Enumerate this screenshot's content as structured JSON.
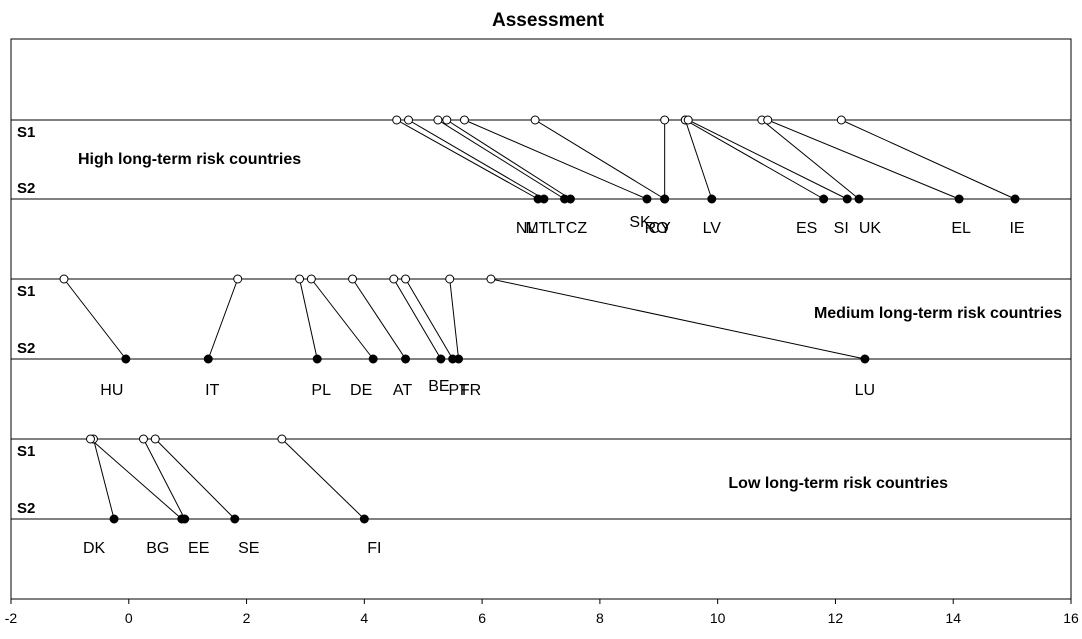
{
  "chart_data": {
    "type": "scatter",
    "title": "Assessment",
    "xlabel": "",
    "ylabel": "",
    "xlim": [
      -2,
      16
    ],
    "x_ticks": [
      "-2",
      "0",
      "2",
      "4",
      "6",
      "8",
      "10",
      "12",
      "14",
      "16"
    ],
    "grid": false,
    "legend": "none",
    "row_labels": {
      "s1": "S1",
      "s2": "S2"
    },
    "groups": [
      {
        "title": "High long-term risk countries",
        "countries": [
          {
            "code": "NL",
            "s1": 4.55,
            "s2": 6.95
          },
          {
            "code": "MT",
            "s1": 4.75,
            "s2": 7.05
          },
          {
            "code": "LT",
            "s1": 5.25,
            "s2": 7.4
          },
          {
            "code": "CZ",
            "s1": 5.4,
            "s2": 7.5
          },
          {
            "code": "SK",
            "s1": 5.7,
            "s2": 8.8
          },
          {
            "code": "CY",
            "s1": 6.9,
            "s2": 9.1
          },
          {
            "code": "RO",
            "s1": 9.1,
            "s2": 9.9
          },
          {
            "code": "LV",
            "s1": 9.45,
            "s2": 11.8
          },
          {
            "code": "ES",
            "s1": 9.5,
            "s2": 12.2
          },
          {
            "code": "SI",
            "s1": 10.75,
            "s2": 12.4
          },
          {
            "code": "UK",
            "s1": 10.85,
            "s2": 14.1
          },
          {
            "code": "EL",
            "s1": 12.1,
            "s2": 15.05
          },
          {
            "code": "IE",
            "s1": null,
            "s2": null
          }
        ]
      },
      {
        "title": "Medium long-term risk countries",
        "countries": [
          {
            "code": "HU",
            "s1": -1.1,
            "s2": -0.05
          },
          {
            "code": "IT",
            "s1": 1.85,
            "s2": 1.35
          },
          {
            "code": "PL",
            "s1": 2.9,
            "s2": 3.2
          },
          {
            "code": "DE",
            "s1": 3.1,
            "s2": 4.15
          },
          {
            "code": "AT",
            "s1": 3.8,
            "s2": 4.7
          },
          {
            "code": "BE",
            "s1": 4.5,
            "s2": 5.3
          },
          {
            "code": "PT",
            "s1": 4.7,
            "s2": 5.5
          },
          {
            "code": "FR",
            "s1": 5.45,
            "s2": 5.6
          },
          {
            "code": "LU",
            "s1": 6.15,
            "s2": 12.5
          }
        ]
      },
      {
        "title": "Low long-term risk countries",
        "countries": [
          {
            "code": "DK",
            "s1": -0.6,
            "s2": -0.25
          },
          {
            "code": "BG",
            "s1": -0.65,
            "s2": 0.9
          },
          {
            "code": "EE",
            "s1": 0.25,
            "s2": 0.95
          },
          {
            "code": "SE",
            "s1": 0.45,
            "s2": 1.8
          },
          {
            "code": "FI",
            "s1": 2.6,
            "s2": 4.0
          }
        ]
      }
    ],
    "connections_note": "",
    "colors": {
      "s1_marker": "#ffffff",
      "s2_marker": "#000000",
      "line": "#000000"
    }
  }
}
